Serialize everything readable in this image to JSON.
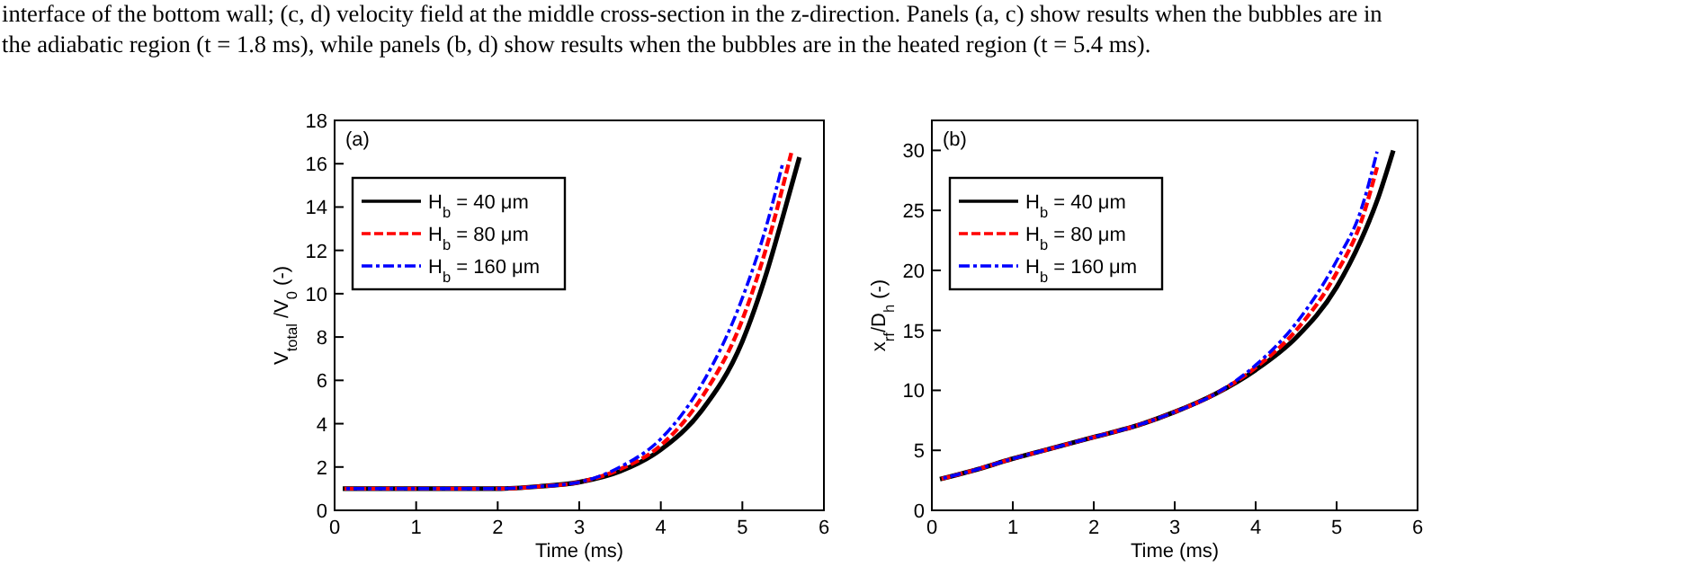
{
  "chart_data": [
    {
      "type": "line",
      "annotations": [
        "interface of the bottom wall; (c, d) velocity field at the middle cross-section in the z-direction. Panels (a, c) show results when the bubbles are in the adiabatic region (t = 1.8 ms), while panels (b, d) show results when the bubbles are in the heated region (t = 5.4 ms).",
        "(a)"
      ],
      "xlabel": "Time (ms)",
      "ylabel": "V$_{total}$ /V$_{0}$ (-)",
      "xlim": [
        0,
        6
      ],
      "xticks": [
        0,
        1,
        2,
        3,
        4,
        5,
        6
      ],
      "ylim": [
        0,
        18
      ],
      "yticks": [
        0,
        2,
        4,
        6,
        8,
        10,
        12,
        14,
        16,
        18
      ],
      "grid": false,
      "legend": "top left",
      "series": [
        {
          "name": "H$_{b}$ = 40 μm",
          "color": "#000000",
          "line_style": "solid",
          "x": [
            0.1,
            1,
            2,
            2.5,
            3,
            3.5,
            4,
            4.5,
            5,
            5.3,
            5.5,
            5.7
          ],
          "values": [
            1,
            1,
            1,
            1.1,
            1.3,
            1.8,
            2.8,
            4.6,
            7.8,
            11,
            13.6,
            16.3
          ]
        },
        {
          "name": "H$_{b}$ = 80 μm",
          "color": "#ff0000",
          "line_style": "dashed",
          "x": [
            0.1,
            1,
            2,
            2.5,
            3,
            3.5,
            4,
            4.5,
            5,
            5.3,
            5.6
          ],
          "values": [
            1,
            1,
            1,
            1.1,
            1.3,
            1.9,
            3,
            5.2,
            8.8,
            12.2,
            16.5
          ]
        },
        {
          "name": "H$_{b}$ = 160 μm",
          "color": "#0000ff",
          "line_style": "dashdot",
          "x": [
            0.1,
            1,
            2,
            2.5,
            3,
            3.5,
            4,
            4.5,
            5,
            5.3,
            5.5
          ],
          "values": [
            1,
            1,
            1,
            1.1,
            1.3,
            2,
            3.3,
            5.8,
            9.8,
            13.2,
            16.1
          ]
        }
      ]
    },
    {
      "type": "line",
      "annotations": [
        "(b)"
      ],
      "xlabel": "Time (ms)",
      "ylabel": "x$_{rf}$/D$_{h}$ (-)",
      "xlim": [
        0,
        6
      ],
      "xticks": [
        0,
        1,
        2,
        3,
        4,
        5,
        6
      ],
      "ylim": [
        0,
        32.5
      ],
      "yticks": [
        0,
        5,
        10,
        15,
        20,
        25,
        30
      ],
      "grid": false,
      "legend": "top left",
      "series": [
        {
          "name": "H$_{b}$ = 40 μm",
          "color": "#000000",
          "line_style": "solid",
          "x": [
            0.1,
            0.5,
            1,
            1.5,
            2,
            2.5,
            3,
            3.5,
            4,
            4.5,
            5,
            5.3,
            5.5,
            5.7
          ],
          "values": [
            2.6,
            3.3,
            4.3,
            5.2,
            6.1,
            7,
            8.2,
            9.7,
            11.7,
            14.4,
            18.6,
            22.5,
            25.8,
            30
          ]
        },
        {
          "name": "H$_{b}$ = 80 μm",
          "color": "#ff0000",
          "line_style": "dashed",
          "x": [
            0.1,
            0.5,
            1,
            1.5,
            2,
            2.5,
            3,
            3.5,
            4,
            4.5,
            5,
            5.3,
            5.5
          ],
          "values": [
            2.6,
            3.3,
            4.3,
            5.2,
            6.1,
            7,
            8.2,
            9.7,
            11.9,
            15,
            19.8,
            24,
            28.6
          ]
        },
        {
          "name": "H$_{b}$ = 160 μm",
          "color": "#0000ff",
          "line_style": "dashdot",
          "x": [
            0.1,
            0.5,
            1,
            1.5,
            2,
            2.5,
            3,
            3.5,
            4,
            4.5,
            5,
            5.3,
            5.5
          ],
          "values": [
            2.6,
            3.3,
            4.3,
            5.2,
            6.1,
            7,
            8.2,
            9.7,
            12.1,
            15.6,
            20.8,
            25,
            29.9
          ]
        }
      ]
    }
  ]
}
